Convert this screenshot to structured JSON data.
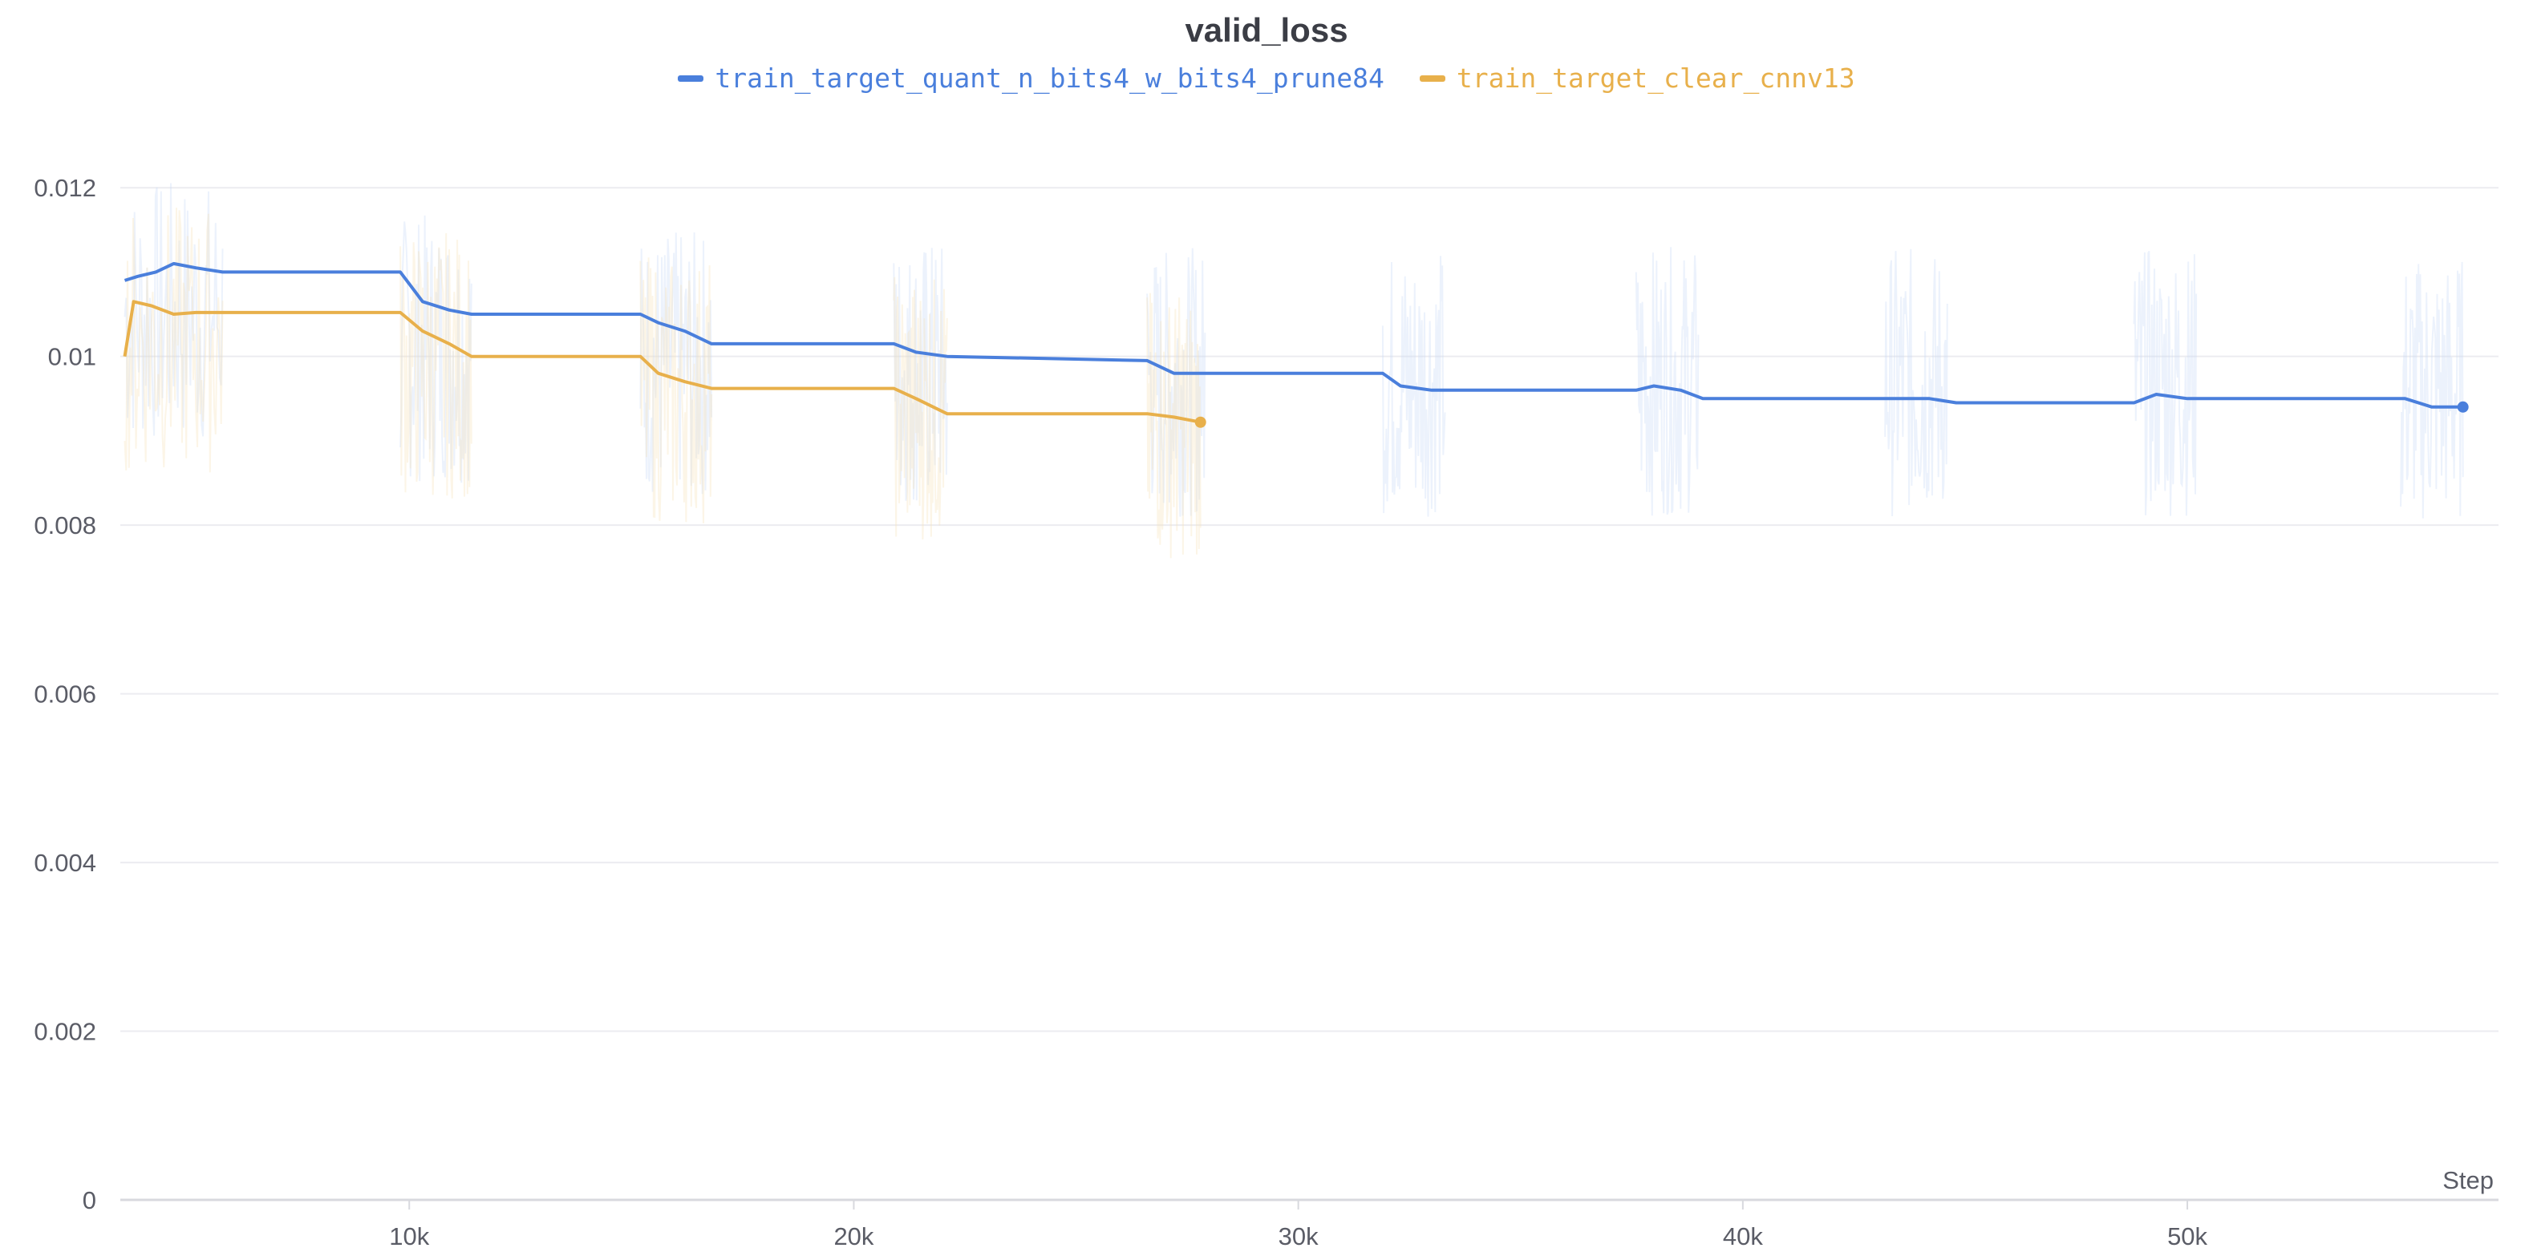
{
  "chart_data": {
    "type": "line",
    "title": "valid_loss",
    "xlabel": "Step",
    "ylabel": "",
    "xlim": [
      3500,
      57000
    ],
    "ylim": [
      0,
      0.0128
    ],
    "grid": true,
    "legend_position": "top-center",
    "x_ticks": [
      {
        "value": 10000,
        "label": "10k"
      },
      {
        "value": 20000,
        "label": "20k"
      },
      {
        "value": 30000,
        "label": "30k"
      },
      {
        "value": 40000,
        "label": "40k"
      },
      {
        "value": 50000,
        "label": "50k"
      }
    ],
    "y_ticks": [
      {
        "value": 0,
        "label": "0"
      },
      {
        "value": 0.002,
        "label": "0.002"
      },
      {
        "value": 0.004,
        "label": "0.004"
      },
      {
        "value": 0.006,
        "label": "0.006"
      },
      {
        "value": 0.008,
        "label": "0.008"
      },
      {
        "value": 0.01,
        "label": "0.01"
      },
      {
        "value": 0.012,
        "label": "0.012"
      }
    ],
    "series": [
      {
        "name": "train_target_quant_n_bits4_w_bits4_prune84",
        "color": "#4a7fdc",
        "x": [
          3600,
          3900,
          4300,
          4700,
          5200,
          5800,
          9800,
          10300,
          10900,
          11400,
          15200,
          15600,
          16200,
          16800,
          20900,
          21400,
          22100,
          26600,
          27200,
          27900,
          31900,
          32300,
          33000,
          37600,
          38000,
          38600,
          39100,
          43300,
          44200,
          44800,
          48800,
          49300,
          50000,
          54900,
          55500,
          56200
        ],
        "y": [
          0.0109,
          0.01095,
          0.011,
          0.0111,
          0.01105,
          0.011,
          0.011,
          0.01065,
          0.01055,
          0.0105,
          0.0105,
          0.0104,
          0.0103,
          0.01015,
          0.01015,
          0.01005,
          0.01,
          0.00995,
          0.0098,
          0.0098,
          0.0098,
          0.00965,
          0.0096,
          0.0096,
          0.00965,
          0.0096,
          0.0095,
          0.0095,
          0.0095,
          0.00945,
          0.00945,
          0.00955,
          0.0095,
          0.0095,
          0.0094,
          0.0094
        ]
      },
      {
        "name": "train_target_clear_cnnv13",
        "color": "#e8b04b",
        "x": [
          3600,
          3800,
          4200,
          4700,
          5200,
          5800,
          9800,
          10300,
          10900,
          11400,
          15200,
          15600,
          16200,
          16800,
          20900,
          21400,
          22100,
          26600,
          27200,
          27800
        ],
        "y": [
          0.01,
          0.01065,
          0.0106,
          0.0105,
          0.01052,
          0.01052,
          0.01052,
          0.0103,
          0.01015,
          0.01,
          0.01,
          0.0098,
          0.0097,
          0.00962,
          0.00962,
          0.0095,
          0.00932,
          0.00932,
          0.00928,
          0.00922
        ]
      }
    ]
  }
}
